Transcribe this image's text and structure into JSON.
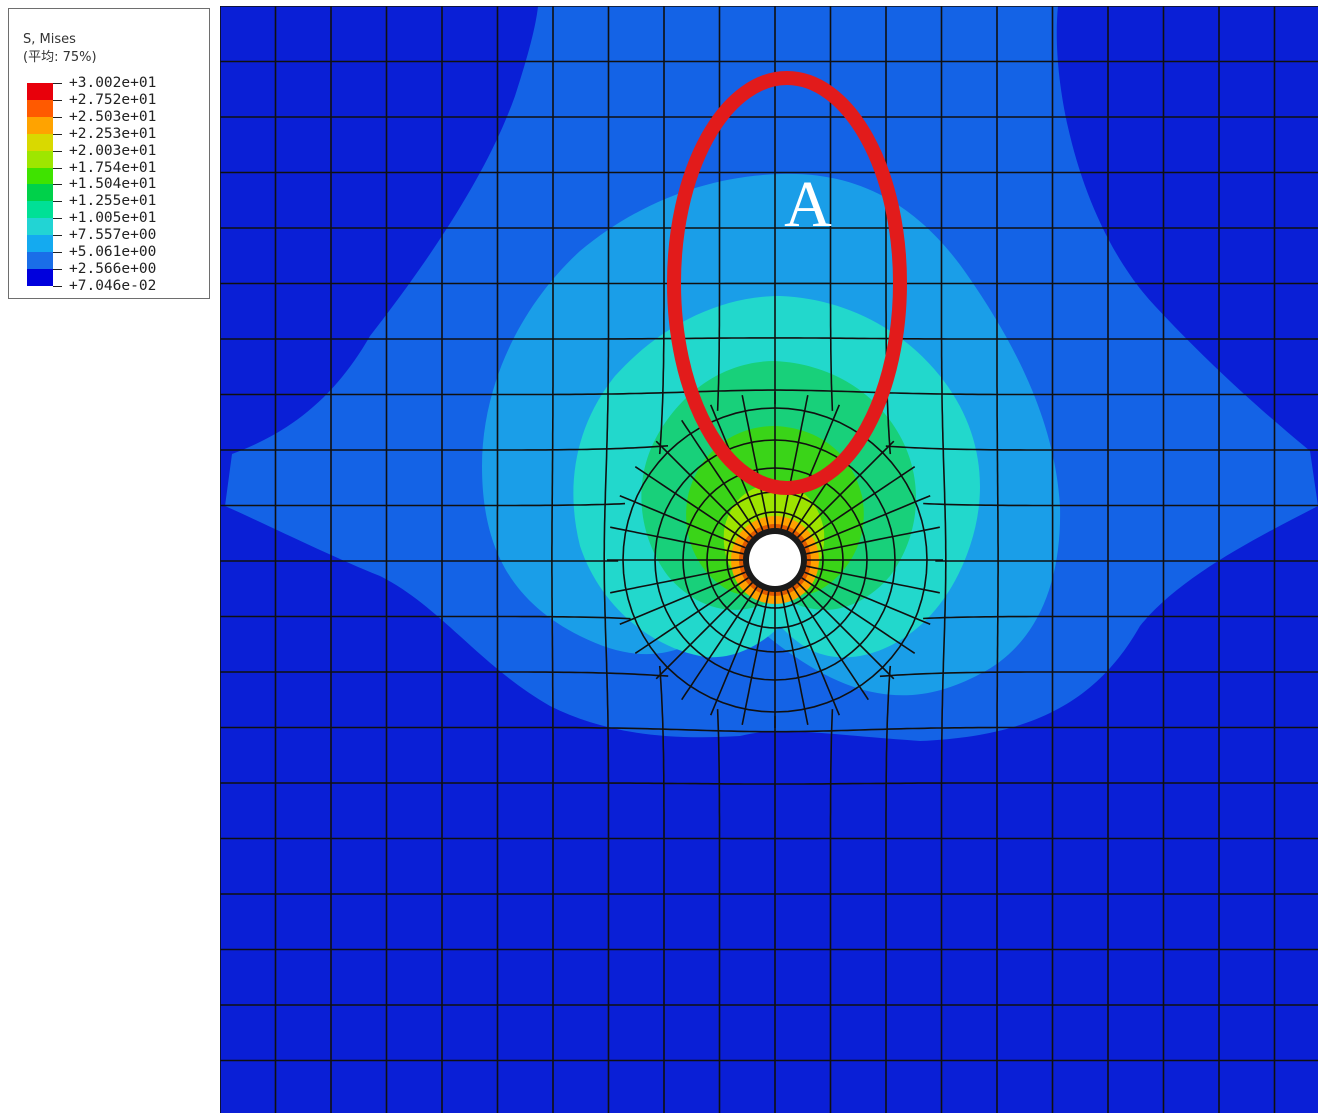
{
  "legend": {
    "title_line1": "S, Mises",
    "title_line2": "(平均: 75%)",
    "values": [
      "+3.002e+01",
      "+2.752e+01",
      "+2.503e+01",
      "+2.253e+01",
      "+2.003e+01",
      "+1.754e+01",
      "+1.504e+01",
      "+1.255e+01",
      "+1.005e+01",
      "+7.557e+00",
      "+5.061e+00",
      "+2.566e+00",
      "+7.046e-02"
    ],
    "colors": [
      "#e8000b",
      "#ff5a00",
      "#ffa300",
      "#d9d900",
      "#9ee600",
      "#3fe300",
      "#00d14a",
      "#00e096",
      "#22d4d4",
      "#14aaf0",
      "#1a6ee8",
      "#0000dd"
    ]
  },
  "contour_colors": {
    "background": "#0a1fd6",
    "band_1": "#1463e6",
    "band_2": "#1a9ee8",
    "band_3": "#22d8cc",
    "band_4": "#18d07a",
    "band_5": "#3ad418",
    "band_6": "#9de400",
    "band_7": "#ffa000",
    "hole_ring": "#e05a00"
  },
  "annotation": {
    "label": "A",
    "ellipse_color": "#e21b1b"
  }
}
